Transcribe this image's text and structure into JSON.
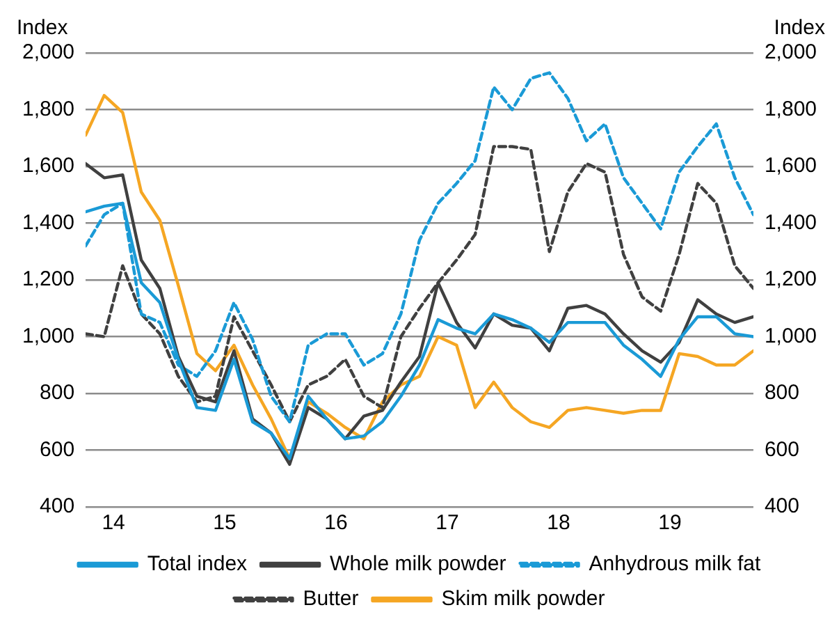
{
  "chart_data": {
    "type": "line",
    "ylabel": "Index",
    "y2label": "Index",
    "x": [
      2013.75,
      2013.917,
      2014.083,
      2014.25,
      2014.417,
      2014.583,
      2014.75,
      2014.917,
      2015.083,
      2015.25,
      2015.417,
      2015.583,
      2015.75,
      2015.917,
      2016.083,
      2016.25,
      2016.417,
      2016.583,
      2016.75,
      2016.917,
      2017.083,
      2017.25,
      2017.417,
      2017.583,
      2017.75,
      2017.917,
      2018.083,
      2018.25,
      2018.417,
      2018.583,
      2018.75,
      2018.917,
      2019.083,
      2019.25,
      2019.417,
      2019.583,
      2019.75
    ],
    "series": [
      {
        "name": "Total index",
        "color": "#1a9ad6",
        "line_style": "solid",
        "values": [
          1440,
          1460,
          1470,
          1190,
          1120,
          920,
          750,
          740,
          920,
          700,
          660,
          570,
          790,
          710,
          640,
          650,
          700,
          790,
          900,
          1060,
          1030,
          1010,
          1080,
          1060,
          1030,
          980,
          1050,
          1050,
          1050,
          970,
          920,
          860,
          990,
          1070,
          1070,
          1010,
          1000
        ]
      },
      {
        "name": "Whole milk powder",
        "color": "#404040",
        "line_style": "solid",
        "values": [
          1610,
          1560,
          1570,
          1270,
          1170,
          930,
          790,
          770,
          950,
          710,
          660,
          550,
          750,
          710,
          640,
          720,
          740,
          840,
          930,
          1190,
          1050,
          960,
          1080,
          1040,
          1030,
          950,
          1100,
          1110,
          1080,
          1010,
          950,
          910,
          980,
          1130,
          1080,
          1050,
          1070
        ]
      },
      {
        "name": "Anhydrous milk fat",
        "color": "#1a9ad6",
        "line_style": "dashed",
        "values": [
          1320,
          1430,
          1470,
          1080,
          1050,
          900,
          860,
          950,
          1120,
          990,
          790,
          700,
          970,
          1010,
          1010,
          900,
          940,
          1080,
          1340,
          1470,
          1540,
          1620,
          1880,
          1800,
          1910,
          1930,
          1840,
          1690,
          1750,
          1560,
          1470,
          1380,
          1580,
          1670,
          1750,
          1560,
          1430
        ]
      },
      {
        "name": "Butter",
        "color": "#404040",
        "line_style": "dashed",
        "values": [
          1010,
          1000,
          1250,
          1080,
          1010,
          860,
          770,
          790,
          1070,
          950,
          830,
          700,
          830,
          860,
          920,
          790,
          750,
          1000,
          1100,
          1190,
          1270,
          1360,
          1670,
          1670,
          1660,
          1300,
          1510,
          1610,
          1580,
          1290,
          1140,
          1090,
          1290,
          1540,
          1470,
          1250,
          1170
        ]
      },
      {
        "name": "Skim milk powder",
        "color": "#f5a623",
        "line_style": "solid",
        "values": [
          1710,
          1850,
          1790,
          1510,
          1410,
          1180,
          940,
          880,
          970,
          830,
          710,
          570,
          770,
          730,
          680,
          640,
          770,
          830,
          860,
          1000,
          970,
          750,
          840,
          750,
          700,
          680,
          740,
          750,
          740,
          730,
          740,
          740,
          940,
          930,
          900,
          900,
          950
        ]
      }
    ],
    "xlim": [
      2013.75,
      2019.75
    ],
    "xticks": [
      {
        "value": 2014,
        "label": "14"
      },
      {
        "value": 2015,
        "label": "15"
      },
      {
        "value": 2016,
        "label": "16"
      },
      {
        "value": 2017,
        "label": "17"
      },
      {
        "value": 2018,
        "label": "18"
      },
      {
        "value": 2019,
        "label": "19"
      }
    ],
    "ylim": [
      400,
      2000
    ],
    "yticks": [
      {
        "value": 400,
        "label": "400"
      },
      {
        "value": 600,
        "label": "600"
      },
      {
        "value": 800,
        "label": "800"
      },
      {
        "value": 1000,
        "label": "1,000"
      },
      {
        "value": 1200,
        "label": "1,200"
      },
      {
        "value": 1400,
        "label": "1,400"
      },
      {
        "value": 1600,
        "label": "1,600"
      },
      {
        "value": 1800,
        "label": "1,800"
      },
      {
        "value": 2000,
        "label": "2,000"
      }
    ],
    "y2lim": [
      400,
      2000
    ],
    "y2ticks": [
      {
        "value": 400,
        "label": "400"
      },
      {
        "value": 600,
        "label": "600"
      },
      {
        "value": 800,
        "label": "800"
      },
      {
        "value": 1000,
        "label": "1,000"
      },
      {
        "value": 1200,
        "label": "1,200"
      },
      {
        "value": 1400,
        "label": "1,400"
      },
      {
        "value": 1600,
        "label": "1,600"
      },
      {
        "value": 1800,
        "label": "1,800"
      },
      {
        "value": 2000,
        "label": "2,000"
      }
    ],
    "grid": "y",
    "legend": "bottom",
    "marker": "none"
  }
}
